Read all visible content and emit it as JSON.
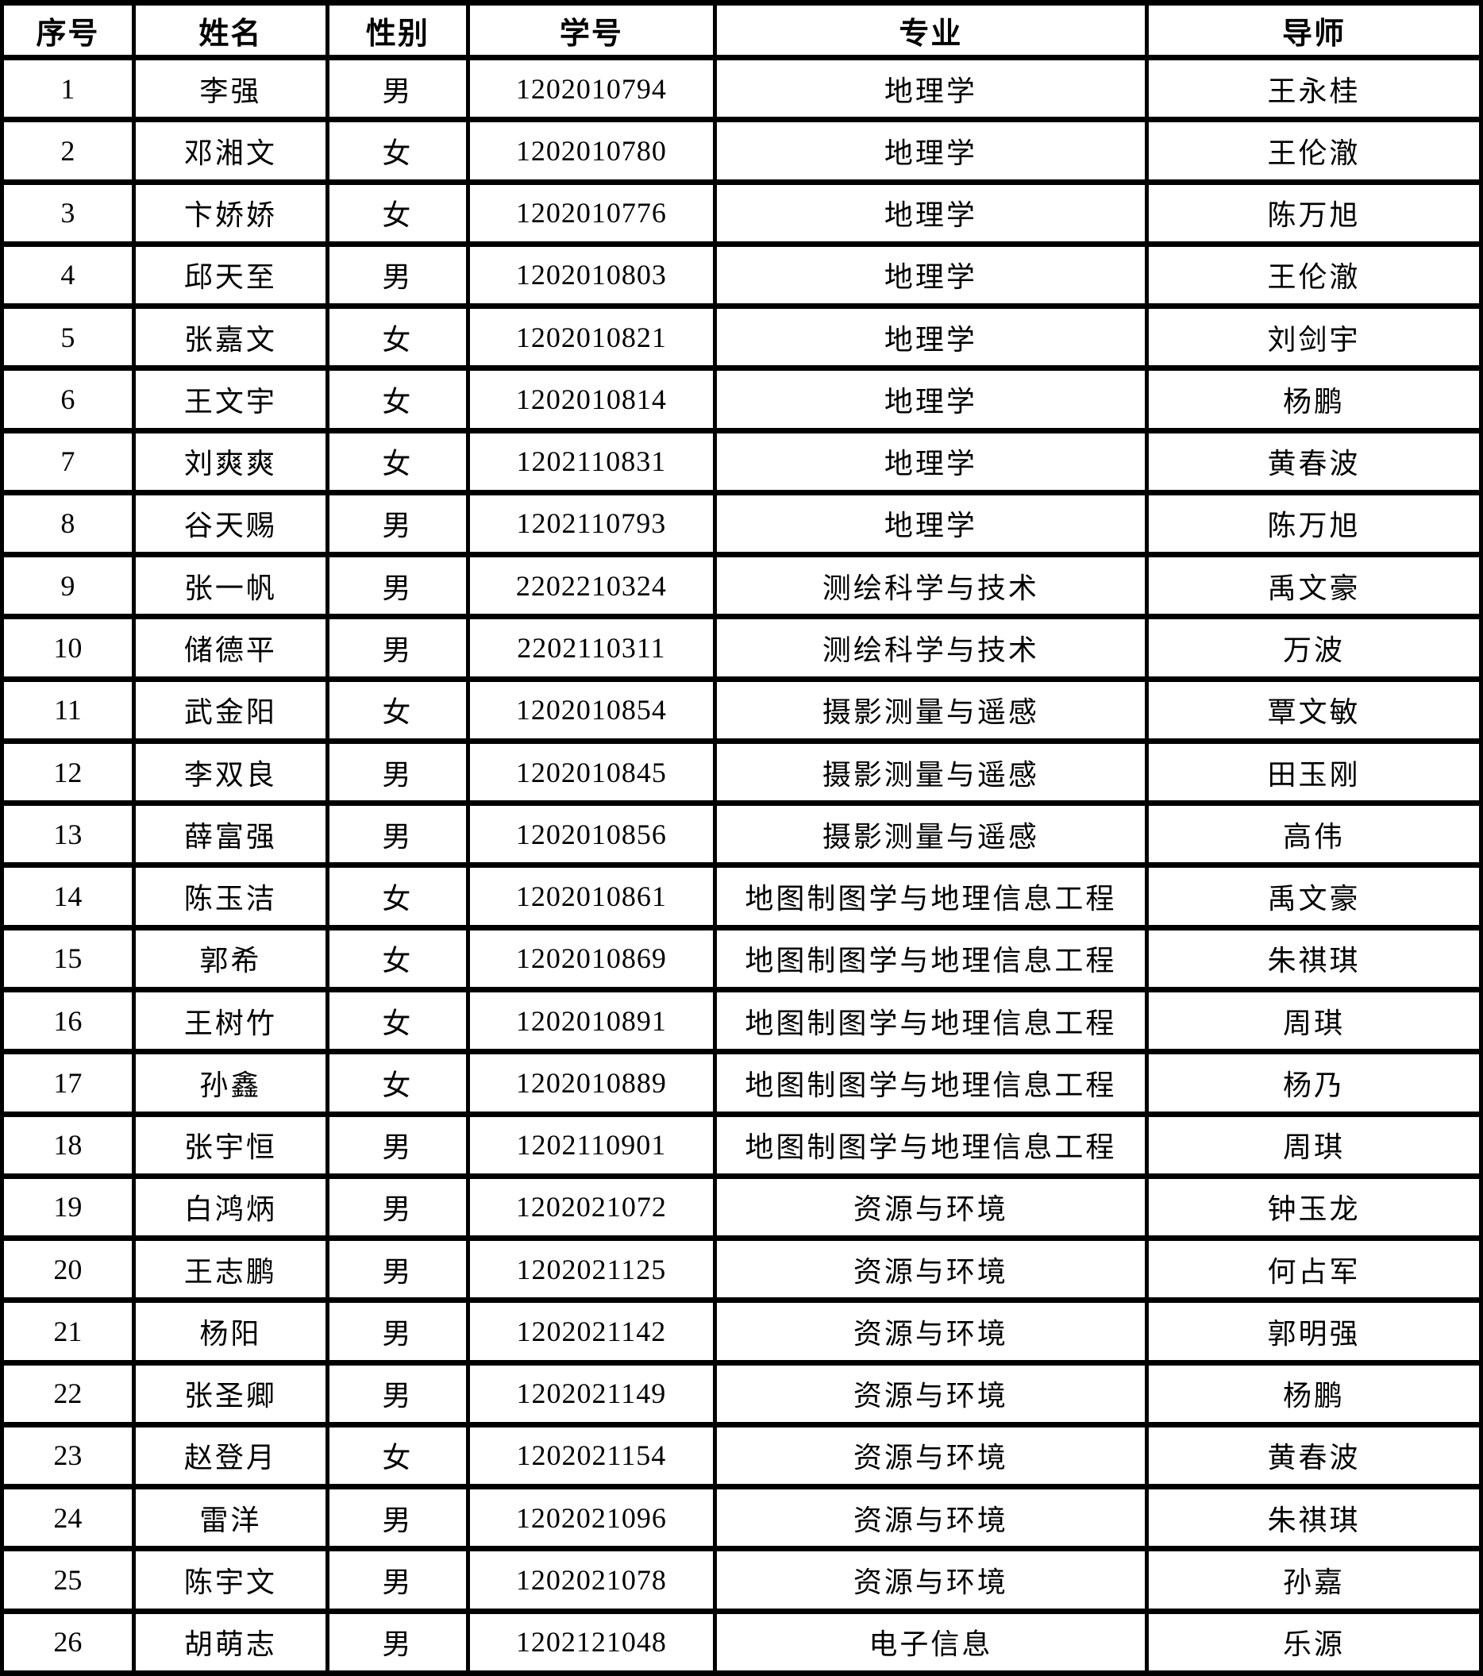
{
  "table": {
    "columns": [
      "序号",
      "姓名",
      "性别",
      "学号",
      "专业",
      "导师"
    ],
    "rows": [
      [
        "1",
        "李强",
        "男",
        "1202010794",
        "地理学",
        "王永桂"
      ],
      [
        "2",
        "邓湘文",
        "女",
        "1202010780",
        "地理学",
        "王伦澈"
      ],
      [
        "3",
        "卞娇娇",
        "女",
        "1202010776",
        "地理学",
        "陈万旭"
      ],
      [
        "4",
        "邱天至",
        "男",
        "1202010803",
        "地理学",
        "王伦澈"
      ],
      [
        "5",
        "张嘉文",
        "女",
        "1202010821",
        "地理学",
        "刘剑宇"
      ],
      [
        "6",
        "王文宇",
        "女",
        "1202010814",
        "地理学",
        "杨鹏"
      ],
      [
        "7",
        "刘爽爽",
        "女",
        "1202110831",
        "地理学",
        "黄春波"
      ],
      [
        "8",
        "谷天赐",
        "男",
        "1202110793",
        "地理学",
        "陈万旭"
      ],
      [
        "9",
        "张一帆",
        "男",
        "2202210324",
        "测绘科学与技术",
        "禹文豪"
      ],
      [
        "10",
        "储德平",
        "男",
        "2202110311",
        "测绘科学与技术",
        "万波"
      ],
      [
        "11",
        "武金阳",
        "女",
        "1202010854",
        "摄影测量与遥感",
        "覃文敏"
      ],
      [
        "12",
        "李双良",
        "男",
        "1202010845",
        "摄影测量与遥感",
        "田玉刚"
      ],
      [
        "13",
        "薛富强",
        "男",
        "1202010856",
        "摄影测量与遥感",
        "高伟"
      ],
      [
        "14",
        "陈玉洁",
        "女",
        "1202010861",
        "地图制图学与地理信息工程",
        "禹文豪"
      ],
      [
        "15",
        "郭希",
        "女",
        "1202010869",
        "地图制图学与地理信息工程",
        "朱祺琪"
      ],
      [
        "16",
        "王树竹",
        "女",
        "1202010891",
        "地图制图学与地理信息工程",
        "周琪"
      ],
      [
        "17",
        "孙鑫",
        "女",
        "1202010889",
        "地图制图学与地理信息工程",
        "杨乃"
      ],
      [
        "18",
        "张宇恒",
        "男",
        "1202110901",
        "地图制图学与地理信息工程",
        "周琪"
      ],
      [
        "19",
        "白鸿炳",
        "男",
        "1202021072",
        "资源与环境",
        "钟玉龙"
      ],
      [
        "20",
        "王志鹏",
        "男",
        "1202021125",
        "资源与环境",
        "何占军"
      ],
      [
        "21",
        "杨阳",
        "男",
        "1202021142",
        "资源与环境",
        "郭明强"
      ],
      [
        "22",
        "张圣卿",
        "男",
        "1202021149",
        "资源与环境",
        "杨鹏"
      ],
      [
        "23",
        "赵登月",
        "女",
        "1202021154",
        "资源与环境",
        "黄春波"
      ],
      [
        "24",
        "雷洋",
        "男",
        "1202021096",
        "资源与环境",
        "朱祺琪"
      ],
      [
        "25",
        "陈宇文",
        "男",
        "1202021078",
        "资源与环境",
        "孙嘉"
      ],
      [
        "26",
        "胡萌志",
        "男",
        "1202121048",
        "电子信息",
        "乐源"
      ]
    ]
  }
}
